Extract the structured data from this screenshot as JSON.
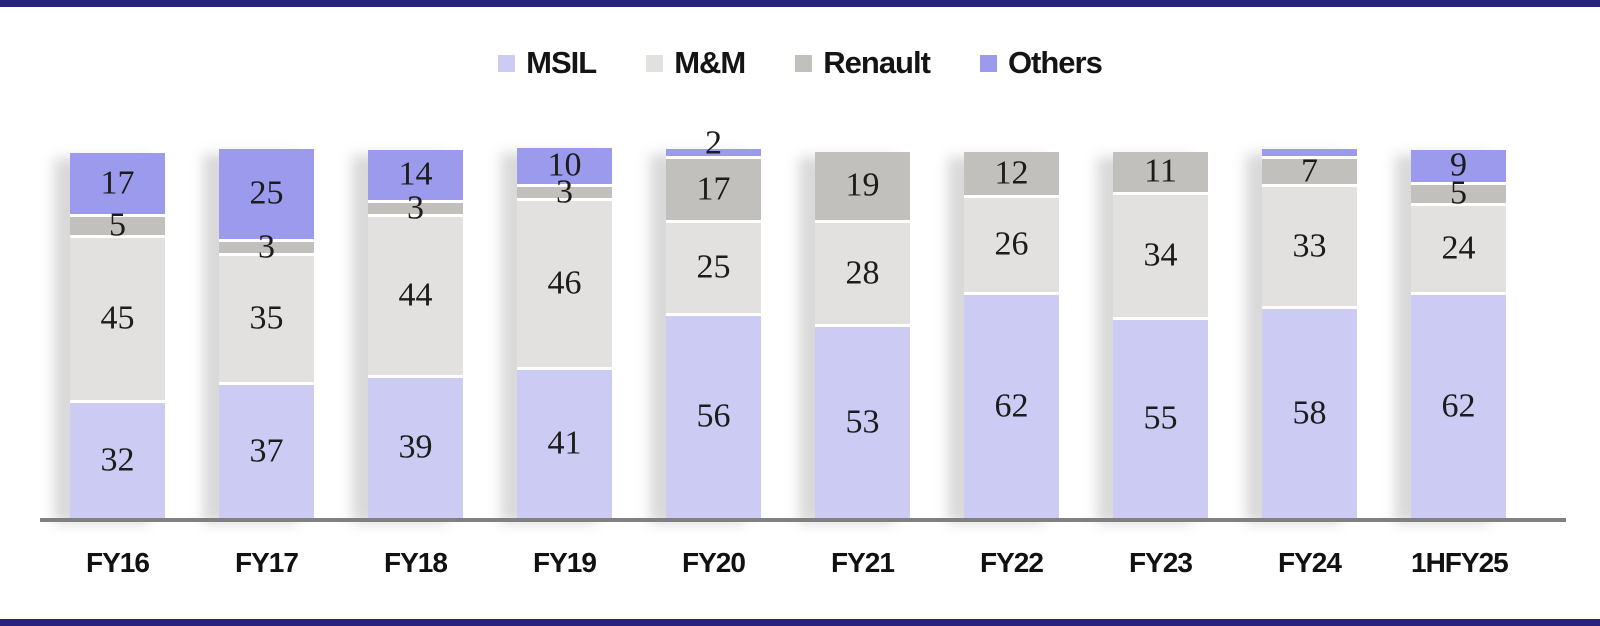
{
  "page": {
    "border_color": "#29217e",
    "background": "#ffffff",
    "axis_line_color": "#808080",
    "value_label_color": "#1c1c1c"
  },
  "chart_data": {
    "type": "bar",
    "stacked": true,
    "orientation": "vertical",
    "title": "",
    "xlabel": "",
    "ylabel": "",
    "ylim": [
      0,
      100
    ],
    "grid": false,
    "legend_position": "top",
    "categories": [
      "FY16",
      "FY17",
      "FY18",
      "FY19",
      "FY20",
      "FY21",
      "FY22",
      "FY23",
      "FY24",
      "1HFY25"
    ],
    "series": [
      {
        "name": "MSIL",
        "color": "#cbcbf3",
        "values": [
          32,
          37,
          39,
          41,
          56,
          53,
          62,
          55,
          58,
          62
        ],
        "labels": [
          "32",
          "37",
          "39",
          "41",
          "56",
          "53",
          "62",
          "55",
          "58",
          "62"
        ]
      },
      {
        "name": "M&M",
        "color": "#e2e1df",
        "values": [
          45,
          35,
          44,
          46,
          25,
          28,
          26,
          34,
          33,
          24
        ],
        "labels": [
          "45",
          "35",
          "44",
          "46",
          "25",
          "28",
          "26",
          "34",
          "33",
          "24"
        ]
      },
      {
        "name": "Renault",
        "color": "#c2c0bc",
        "values": [
          5,
          3,
          3,
          3,
          17,
          19,
          12,
          11,
          7,
          5
        ],
        "labels": [
          "5",
          "3",
          "3",
          "3",
          "17",
          "19",
          "12",
          "11",
          "7",
          "5"
        ]
      },
      {
        "name": "Others",
        "color": "#9c9aec",
        "values": [
          17,
          25,
          14,
          10,
          2,
          0,
          0,
          0,
          2,
          9
        ],
        "labels": [
          "17",
          "25",
          "14",
          "10",
          "2",
          "",
          "",
          "",
          "",
          "9"
        ]
      }
    ]
  }
}
